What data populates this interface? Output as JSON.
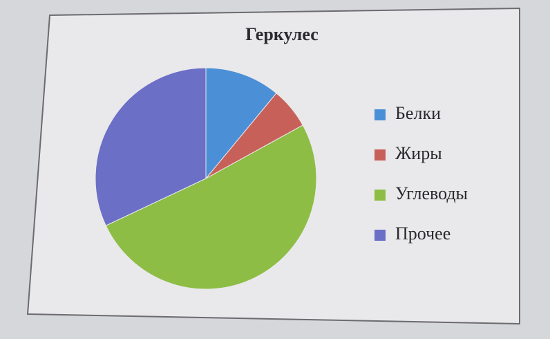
{
  "chart_data": {
    "type": "pie",
    "title": "Геркулес",
    "categories": [
      "Белки",
      "Жиры",
      "Углеводы",
      "Прочее"
    ],
    "values": [
      11,
      6,
      51,
      32
    ],
    "colors": [
      "#4b8fd6",
      "#c8605a",
      "#8dbd45",
      "#6b6fc6"
    ],
    "legend": "right"
  }
}
